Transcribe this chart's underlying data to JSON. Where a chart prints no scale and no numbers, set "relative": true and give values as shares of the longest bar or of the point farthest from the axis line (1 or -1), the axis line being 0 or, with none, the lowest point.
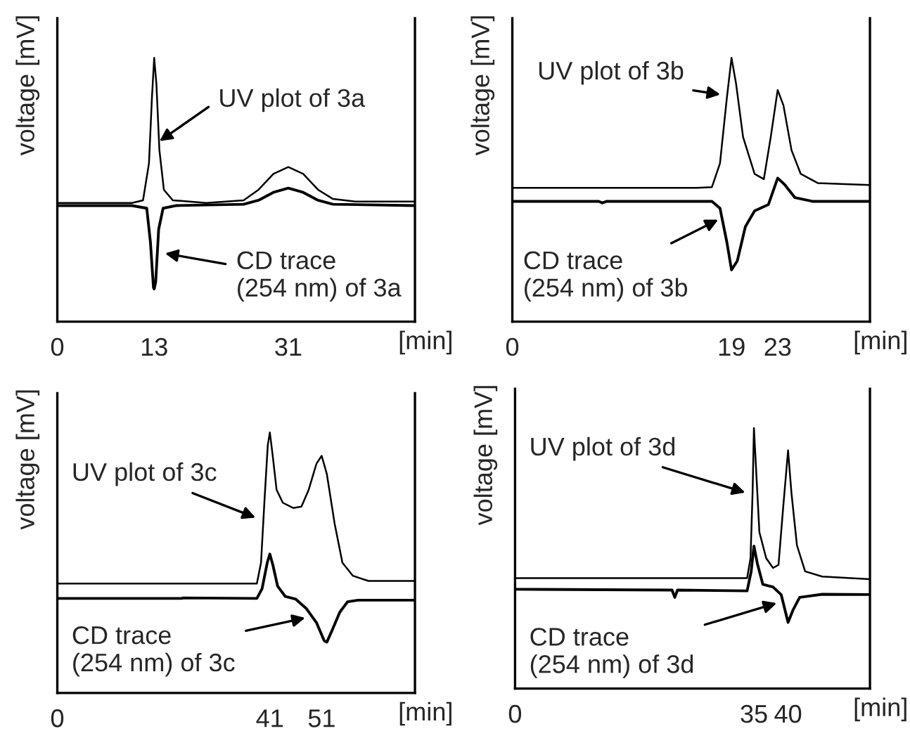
{
  "chart_data": [
    {
      "type": "line",
      "relative": true,
      "xlabel": "[min]",
      "ylabel": "voltage [mV]",
      "xlim": [
        0,
        48
      ],
      "xticks": [
        0,
        13,
        31
      ],
      "tick_labels": "x",
      "series": [
        {
          "color": "#000000",
          "x": [
            0,
            10,
            11.5,
            12.3,
            12.7,
            13,
            13.3,
            13.7,
            14.3,
            15.5,
            20,
            25,
            27,
            29,
            31,
            33,
            35,
            37,
            40,
            48
          ],
          "values": [
            0.45,
            0.45,
            0.46,
            0.6,
            0.85,
            1.0,
            0.9,
            0.65,
            0.5,
            0.46,
            0.45,
            0.46,
            0.5,
            0.56,
            0.586,
            0.56,
            0.5,
            0.465,
            0.455,
            0.455
          ]
        },
        {
          "color": "#000000",
          "x": [
            0,
            10,
            12,
            12.5,
            12.9,
            13,
            13.2,
            13.6,
            14.2,
            16,
            25,
            27,
            29,
            31,
            33,
            35,
            37,
            48
          ],
          "values": [
            0.44,
            0.44,
            0.43,
            0.3,
            0.13,
            0.124,
            0.15,
            0.35,
            0.43,
            0.44,
            0.445,
            0.46,
            0.49,
            0.506,
            0.49,
            0.46,
            0.445,
            0.44
          ]
        }
      ],
      "annotations": [
        {
          "text": "UV plot of 3a",
          "x": 13.5,
          "y": 0.68
        },
        {
          "text": "CD trace\n(254 nm) of 3a",
          "x": 14.2,
          "y": 0.26
        }
      ]
    },
    {
      "type": "line",
      "relative": true,
      "xlabel": "[min]",
      "ylabel": "voltage [mV]",
      "xlim": [
        0,
        31
      ],
      "xticks": [
        0,
        19,
        23
      ],
      "tick_labels": "x",
      "series": [
        {
          "color": "#000000",
          "x": [
            0,
            16,
            17.3,
            18,
            18.6,
            19,
            19.4,
            20,
            21,
            21.8,
            22.4,
            23,
            23.5,
            24.2,
            25,
            26.5,
            31
          ],
          "values": [
            0.507,
            0.507,
            0.51,
            0.6,
            0.85,
            1.0,
            0.9,
            0.7,
            0.56,
            0.54,
            0.7,
            0.878,
            0.82,
            0.65,
            0.56,
            0.525,
            0.518
          ]
        },
        {
          "color": "#000000",
          "x": [
            0,
            7.5,
            7.8,
            8.2,
            17.3,
            18,
            18.6,
            19,
            19.5,
            20.2,
            21,
            22.2,
            23,
            23.6,
            24.5,
            26,
            31
          ],
          "values": [
            0.456,
            0.456,
            0.45,
            0.456,
            0.456,
            0.43,
            0.3,
            0.196,
            0.23,
            0.36,
            0.42,
            0.444,
            0.544,
            0.52,
            0.47,
            0.456,
            0.456
          ]
        }
      ],
      "annotations": [
        {
          "text": "UV plot of 3b",
          "x": 18.2,
          "y": 0.86
        },
        {
          "text": "CD trace\n(254 nm) of 3b",
          "x": 18.0,
          "y": 0.39
        }
      ]
    },
    {
      "type": "line",
      "relative": true,
      "xlabel": "[min]",
      "ylabel": "voltage [mV]",
      "xlim": [
        0,
        69
      ],
      "xticks": [
        0,
        41,
        51
      ],
      "tick_labels": "x",
      "series": [
        {
          "color": "#000000",
          "x": [
            0,
            38.5,
            39.3,
            40,
            40.6,
            41,
            41.5,
            42.3,
            43.5,
            45.5,
            47.1,
            48.5,
            50,
            51,
            52,
            53.5,
            55,
            57,
            60,
            69
          ],
          "values": [
            0.42,
            0.42,
            0.5,
            0.75,
            0.95,
            1.0,
            0.92,
            0.78,
            0.73,
            0.71,
            0.715,
            0.78,
            0.88,
            0.91,
            0.84,
            0.65,
            0.5,
            0.45,
            0.43,
            0.43
          ]
        },
        {
          "color": "#000000",
          "x": [
            0,
            24,
            24.3,
            38.5,
            39.5,
            40.5,
            41,
            41.6,
            42.5,
            44,
            46,
            48,
            50,
            51.5,
            52,
            53,
            54.5,
            56,
            58,
            69
          ],
          "values": [
            0.363,
            0.363,
            0.365,
            0.363,
            0.4,
            0.5,
            0.533,
            0.49,
            0.41,
            0.37,
            0.36,
            0.325,
            0.27,
            0.2,
            0.195,
            0.24,
            0.31,
            0.35,
            0.356,
            0.356
          ]
        }
      ],
      "annotations": [
        {
          "text": "UV plot of 3c",
          "x": 38.6,
          "y": 0.67
        },
        {
          "text": "CD trace\n(254 nm) of 3c",
          "x": 48.2,
          "y": 0.29
        }
      ]
    },
    {
      "type": "line",
      "relative": true,
      "xlabel": "[min]",
      "ylabel": "voltage [mV]",
      "xlim": [
        0,
        52
      ],
      "xticks": [
        0,
        35,
        40
      ],
      "tick_labels": "x",
      "series": [
        {
          "color": "#000000",
          "x": [
            0,
            34,
            34.5,
            34.8,
            35,
            35.3,
            35.8,
            36.8,
            37.8,
            38.6,
            39.3,
            40,
            40.5,
            41.3,
            42.5,
            45,
            52
          ],
          "values": [
            0.424,
            0.424,
            0.5,
            0.75,
            1.0,
            0.85,
            0.6,
            0.5,
            0.463,
            0.475,
            0.7,
            0.914,
            0.75,
            0.55,
            0.45,
            0.43,
            0.42
          ]
        },
        {
          "color": "#000000",
          "x": [
            0,
            23,
            23.4,
            23.8,
            34,
            34.6,
            35,
            35.5,
            36.3,
            37.8,
            39,
            40,
            40.7,
            41.7,
            45,
            52
          ],
          "values": [
            0.381,
            0.378,
            0.35,
            0.378,
            0.375,
            0.45,
            0.547,
            0.48,
            0.4,
            0.39,
            0.36,
            0.254,
            0.3,
            0.35,
            0.362,
            0.361
          ]
        }
      ],
      "annotations": [
        {
          "text": "UV plot of 3d",
          "x": 34,
          "y": 0.75
        },
        {
          "text": "CD trace\n(254 nm) of 3d",
          "x": 38.6,
          "y": 0.33
        }
      ]
    }
  ]
}
